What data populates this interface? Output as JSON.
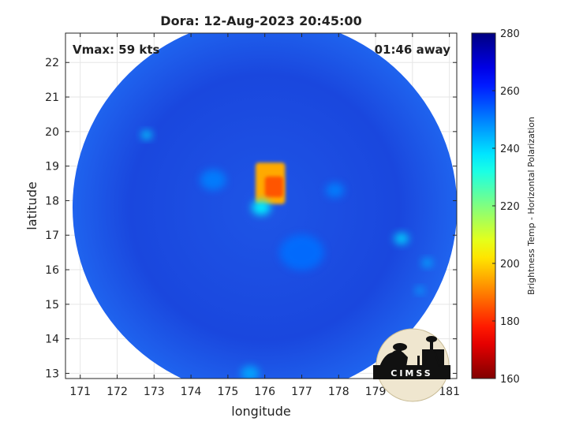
{
  "chart_data": {
    "type": "heatmap",
    "title": "Dora: 12-Aug-2023 20:45:00",
    "xlabel": "longitude",
    "ylabel": "latitude",
    "xlim": [
      170.6,
      181.2
    ],
    "ylim": [
      12.85,
      22.85
    ],
    "xticks": [
      171,
      172,
      173,
      174,
      175,
      176,
      177,
      178,
      179,
      180,
      181
    ],
    "yticks": [
      13,
      14,
      15,
      16,
      17,
      18,
      19,
      20,
      21,
      22
    ],
    "grid": true,
    "annotations": {
      "vmax": "Vmax: 59 kts",
      "time_away": "01:46 away"
    },
    "swath": {
      "center_lon": 176.0,
      "center_lat": 17.8,
      "radius_deg": 5.6
    },
    "features": [
      {
        "type": "core",
        "lon": [
          175.75,
          176.55
        ],
        "lat": [
          17.9,
          19.1
        ],
        "tb": 195
      },
      {
        "type": "core",
        "lon": [
          176.0,
          176.5
        ],
        "lat": [
          18.1,
          18.7
        ],
        "tb": 185
      },
      {
        "type": "blob",
        "lon": 175.9,
        "lat": 17.8,
        "radius": 0.25,
        "tb": 235
      },
      {
        "type": "blob",
        "lon": 172.8,
        "lat": 19.9,
        "radius": 0.15,
        "tb": 240
      },
      {
        "type": "blob",
        "lon": 179.7,
        "lat": 16.9,
        "radius": 0.2,
        "tb": 240
      },
      {
        "type": "blob",
        "lon": 180.4,
        "lat": 16.2,
        "radius": 0.15,
        "tb": 245
      },
      {
        "type": "blob",
        "lon": 180.2,
        "lat": 15.4,
        "radius": 0.12,
        "tb": 245
      },
      {
        "type": "blob",
        "lon": 177.9,
        "lat": 18.3,
        "radius": 0.25,
        "tb": 250
      },
      {
        "type": "blob",
        "lon": 174.6,
        "lat": 18.6,
        "radius": 0.35,
        "tb": 250
      },
      {
        "type": "blob",
        "lon": 177.0,
        "lat": 16.5,
        "radius": 0.6,
        "tb": 252
      },
      {
        "type": "blob",
        "lon": 175.6,
        "lat": 13.0,
        "radius": 0.25,
        "tb": 245
      }
    ],
    "colorbar": {
      "label": "Brightness Temp - Horizontal Polarization",
      "min": 160,
      "max": 280,
      "ticks": [
        160,
        180,
        200,
        220,
        240,
        260,
        280
      ],
      "colormap": "jet"
    }
  },
  "logo": {
    "text": "CIMSS"
  }
}
